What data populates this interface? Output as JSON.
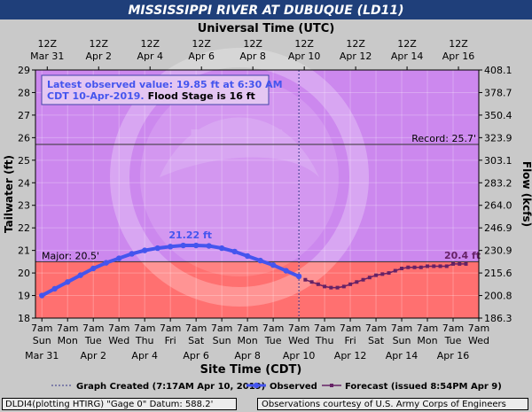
{
  "title": "MISSISSIPPI RIVER AT DUBUQUE (LD11)",
  "top_axis_title": "Universal Time (UTC)",
  "bottom_axis_title": "Site Time (CDT)",
  "colors": {
    "title_bar": "#1f3f7a",
    "action_zone": "#cc88ee",
    "flood_zone": "#ff7070",
    "observed": "#4455ee",
    "forecast": "#662266"
  },
  "footer": {
    "left": "DLDI4(plotting HTIRG) \"Gage 0\" Datum: 588.2'",
    "right": "Observations courtesy of U.S. Army Corps of Engineers"
  },
  "chart_data": {
    "type": "line",
    "title": "MISSISSIPPI RIVER AT DUBUQUE (LD11)",
    "xlabel": "Site Time (CDT)",
    "x2label": "Universal Time (UTC)",
    "ylabel": "Tailwater (ft)",
    "y2label": "Flow (kcfs)",
    "x_unit": "days since Mar 31 7am CDT",
    "xlim": [
      -0.25,
      17.0
    ],
    "ylim": [
      18,
      29
    ],
    "y_ticks": [
      18,
      19,
      20,
      21,
      22,
      23,
      24,
      25,
      26,
      27,
      28,
      29
    ],
    "y2_ticks": [
      "186.3",
      "200.8",
      "215.6",
      "230.9",
      "246.9",
      "264.0",
      "283.2",
      "303.1",
      "323.9",
      "350.4",
      "378.7",
      "408.1"
    ],
    "top_ticks": [
      {
        "line1": "12Z",
        "line2": "Mar 31"
      },
      {
        "line1": "12Z",
        "line2": "Apr  2"
      },
      {
        "line1": "12Z",
        "line2": "Apr  4"
      },
      {
        "line1": "12Z",
        "line2": "Apr  6"
      },
      {
        "line1": "12Z",
        "line2": "Apr  8"
      },
      {
        "line1": "12Z",
        "line2": "Apr 10"
      },
      {
        "line1": "12Z",
        "line2": "Apr 12"
      },
      {
        "line1": "12Z",
        "line2": "Apr 14"
      },
      {
        "line1": "12Z",
        "line2": "Apr 16"
      }
    ],
    "bottom_ticks": [
      {
        "t": "7am",
        "d": "Sun",
        "e": "Mar 31"
      },
      {
        "t": "7am",
        "d": "Mon",
        "e": ""
      },
      {
        "t": "7am",
        "d": "Tue",
        "e": "Apr 2"
      },
      {
        "t": "7am",
        "d": "Wed",
        "e": ""
      },
      {
        "t": "7am",
        "d": "Thu",
        "e": "Apr 4"
      },
      {
        "t": "7am",
        "d": "Fri",
        "e": ""
      },
      {
        "t": "7am",
        "d": "Sat",
        "e": "Apr 6"
      },
      {
        "t": "7am",
        "d": "Sun",
        "e": ""
      },
      {
        "t": "7am",
        "d": "Mon",
        "e": "Apr 8"
      },
      {
        "t": "7am",
        "d": "Tue",
        "e": ""
      },
      {
        "t": "7am",
        "d": "Wed",
        "e": "Apr 10"
      },
      {
        "t": "7am",
        "d": "Thu",
        "e": ""
      },
      {
        "t": "7am",
        "d": "Fri",
        "e": "Apr 12"
      },
      {
        "t": "7am",
        "d": "Sat",
        "e": ""
      },
      {
        "t": "7am",
        "d": "Sun",
        "e": "Apr 14"
      },
      {
        "t": "7am",
        "d": "Mon",
        "e": ""
      },
      {
        "t": "7am",
        "d": "Tue",
        "e": "Apr 16"
      },
      {
        "t": "7am",
        "d": "Wed",
        "e": ""
      }
    ],
    "major_stage": 20.5,
    "major_label": "Major: 20.5'",
    "record_stage": 25.7,
    "record_label": "Record: 25.7'",
    "flood_stage": 16,
    "peak_label": "21.22 ft",
    "forecast_end_label": "20.4 ft",
    "info_box": {
      "line1": "Latest observed value: 19.85 ft at 6:30 AM",
      "line2a": "CDT 10-Apr-2019.",
      "line2b": "Flood Stage is 16 ft"
    },
    "legend": [
      {
        "kind": "line",
        "label": "Graph Created (7:17AM Apr 10, 2019)"
      },
      {
        "kind": "observed",
        "label": "Observed"
      },
      {
        "kind": "forecast",
        "label": "Forecast (issued 8:54PM Apr 9)"
      }
    ],
    "created_x": 10.0,
    "series": [
      {
        "name": "Observed",
        "x": [
          0,
          0.5,
          1,
          1.5,
          2,
          2.5,
          3,
          3.5,
          4,
          4.5,
          5,
          5.5,
          6,
          6.5,
          7,
          7.5,
          8,
          8.5,
          9,
          9.5,
          10
        ],
        "y": [
          19.0,
          19.3,
          19.6,
          19.9,
          20.2,
          20.45,
          20.65,
          20.85,
          21.0,
          21.1,
          21.17,
          21.22,
          21.22,
          21.2,
          21.1,
          20.95,
          20.75,
          20.55,
          20.35,
          20.1,
          19.85
        ]
      },
      {
        "name": "Forecast",
        "x": [
          10.25,
          10.5,
          10.75,
          11,
          11.25,
          11.5,
          11.75,
          12,
          12.25,
          12.5,
          12.75,
          13,
          13.25,
          13.5,
          13.75,
          14,
          14.25,
          14.5,
          14.75,
          15,
          15.25,
          15.5,
          15.75,
          16,
          16.25,
          16.5
        ],
        "y": [
          19.7,
          19.6,
          19.5,
          19.4,
          19.35,
          19.35,
          19.4,
          19.5,
          19.6,
          19.7,
          19.8,
          19.9,
          19.95,
          20.0,
          20.1,
          20.2,
          20.25,
          20.25,
          20.25,
          20.3,
          20.3,
          20.3,
          20.3,
          20.4,
          20.4,
          20.4
        ]
      }
    ]
  }
}
